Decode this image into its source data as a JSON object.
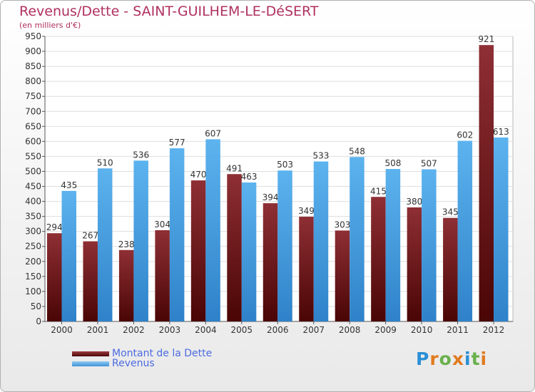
{
  "chart_data": {
    "type": "bar",
    "title": "Revenus/Dette - SAINT-GUILHEM-LE-DéSERT",
    "subtitle": "(en milliers d'€)",
    "xlabel": "",
    "ylabel": "",
    "ylim": [
      0,
      950
    ],
    "ytick_step": 50,
    "grid": true,
    "categories": [
      "2000",
      "2001",
      "2002",
      "2003",
      "2004",
      "2005",
      "2006",
      "2007",
      "2008",
      "2009",
      "2010",
      "2011",
      "2012"
    ],
    "series": [
      {
        "name": "Montant de la Dette",
        "color": "#7a1c22",
        "values": [
          294,
          267,
          238,
          304,
          470,
          491,
          394,
          349,
          303,
          415,
          380,
          345,
          921
        ]
      },
      {
        "name": "Revenus",
        "color": "#4ea6e6",
        "values": [
          435,
          510,
          536,
          577,
          607,
          463,
          503,
          533,
          548,
          508,
          507,
          602,
          613
        ]
      }
    ],
    "legend": {
      "position": "bottom-left"
    }
  },
  "legend_items": [
    {
      "label": "Montant de la Dette",
      "color": "#6b0a0a"
    },
    {
      "label": "Revenus",
      "color": "#4ea6e6"
    }
  ],
  "logo": {
    "text": "Proxiti",
    "letters": [
      "P",
      "r",
      "o",
      "x",
      "i",
      "t",
      "i"
    ],
    "colors": [
      "#2a8fd6",
      "#e07b20",
      "#6ab04c",
      "#e07b20",
      "#2a8fd6",
      "#6ab04c",
      "#e07b20"
    ]
  }
}
